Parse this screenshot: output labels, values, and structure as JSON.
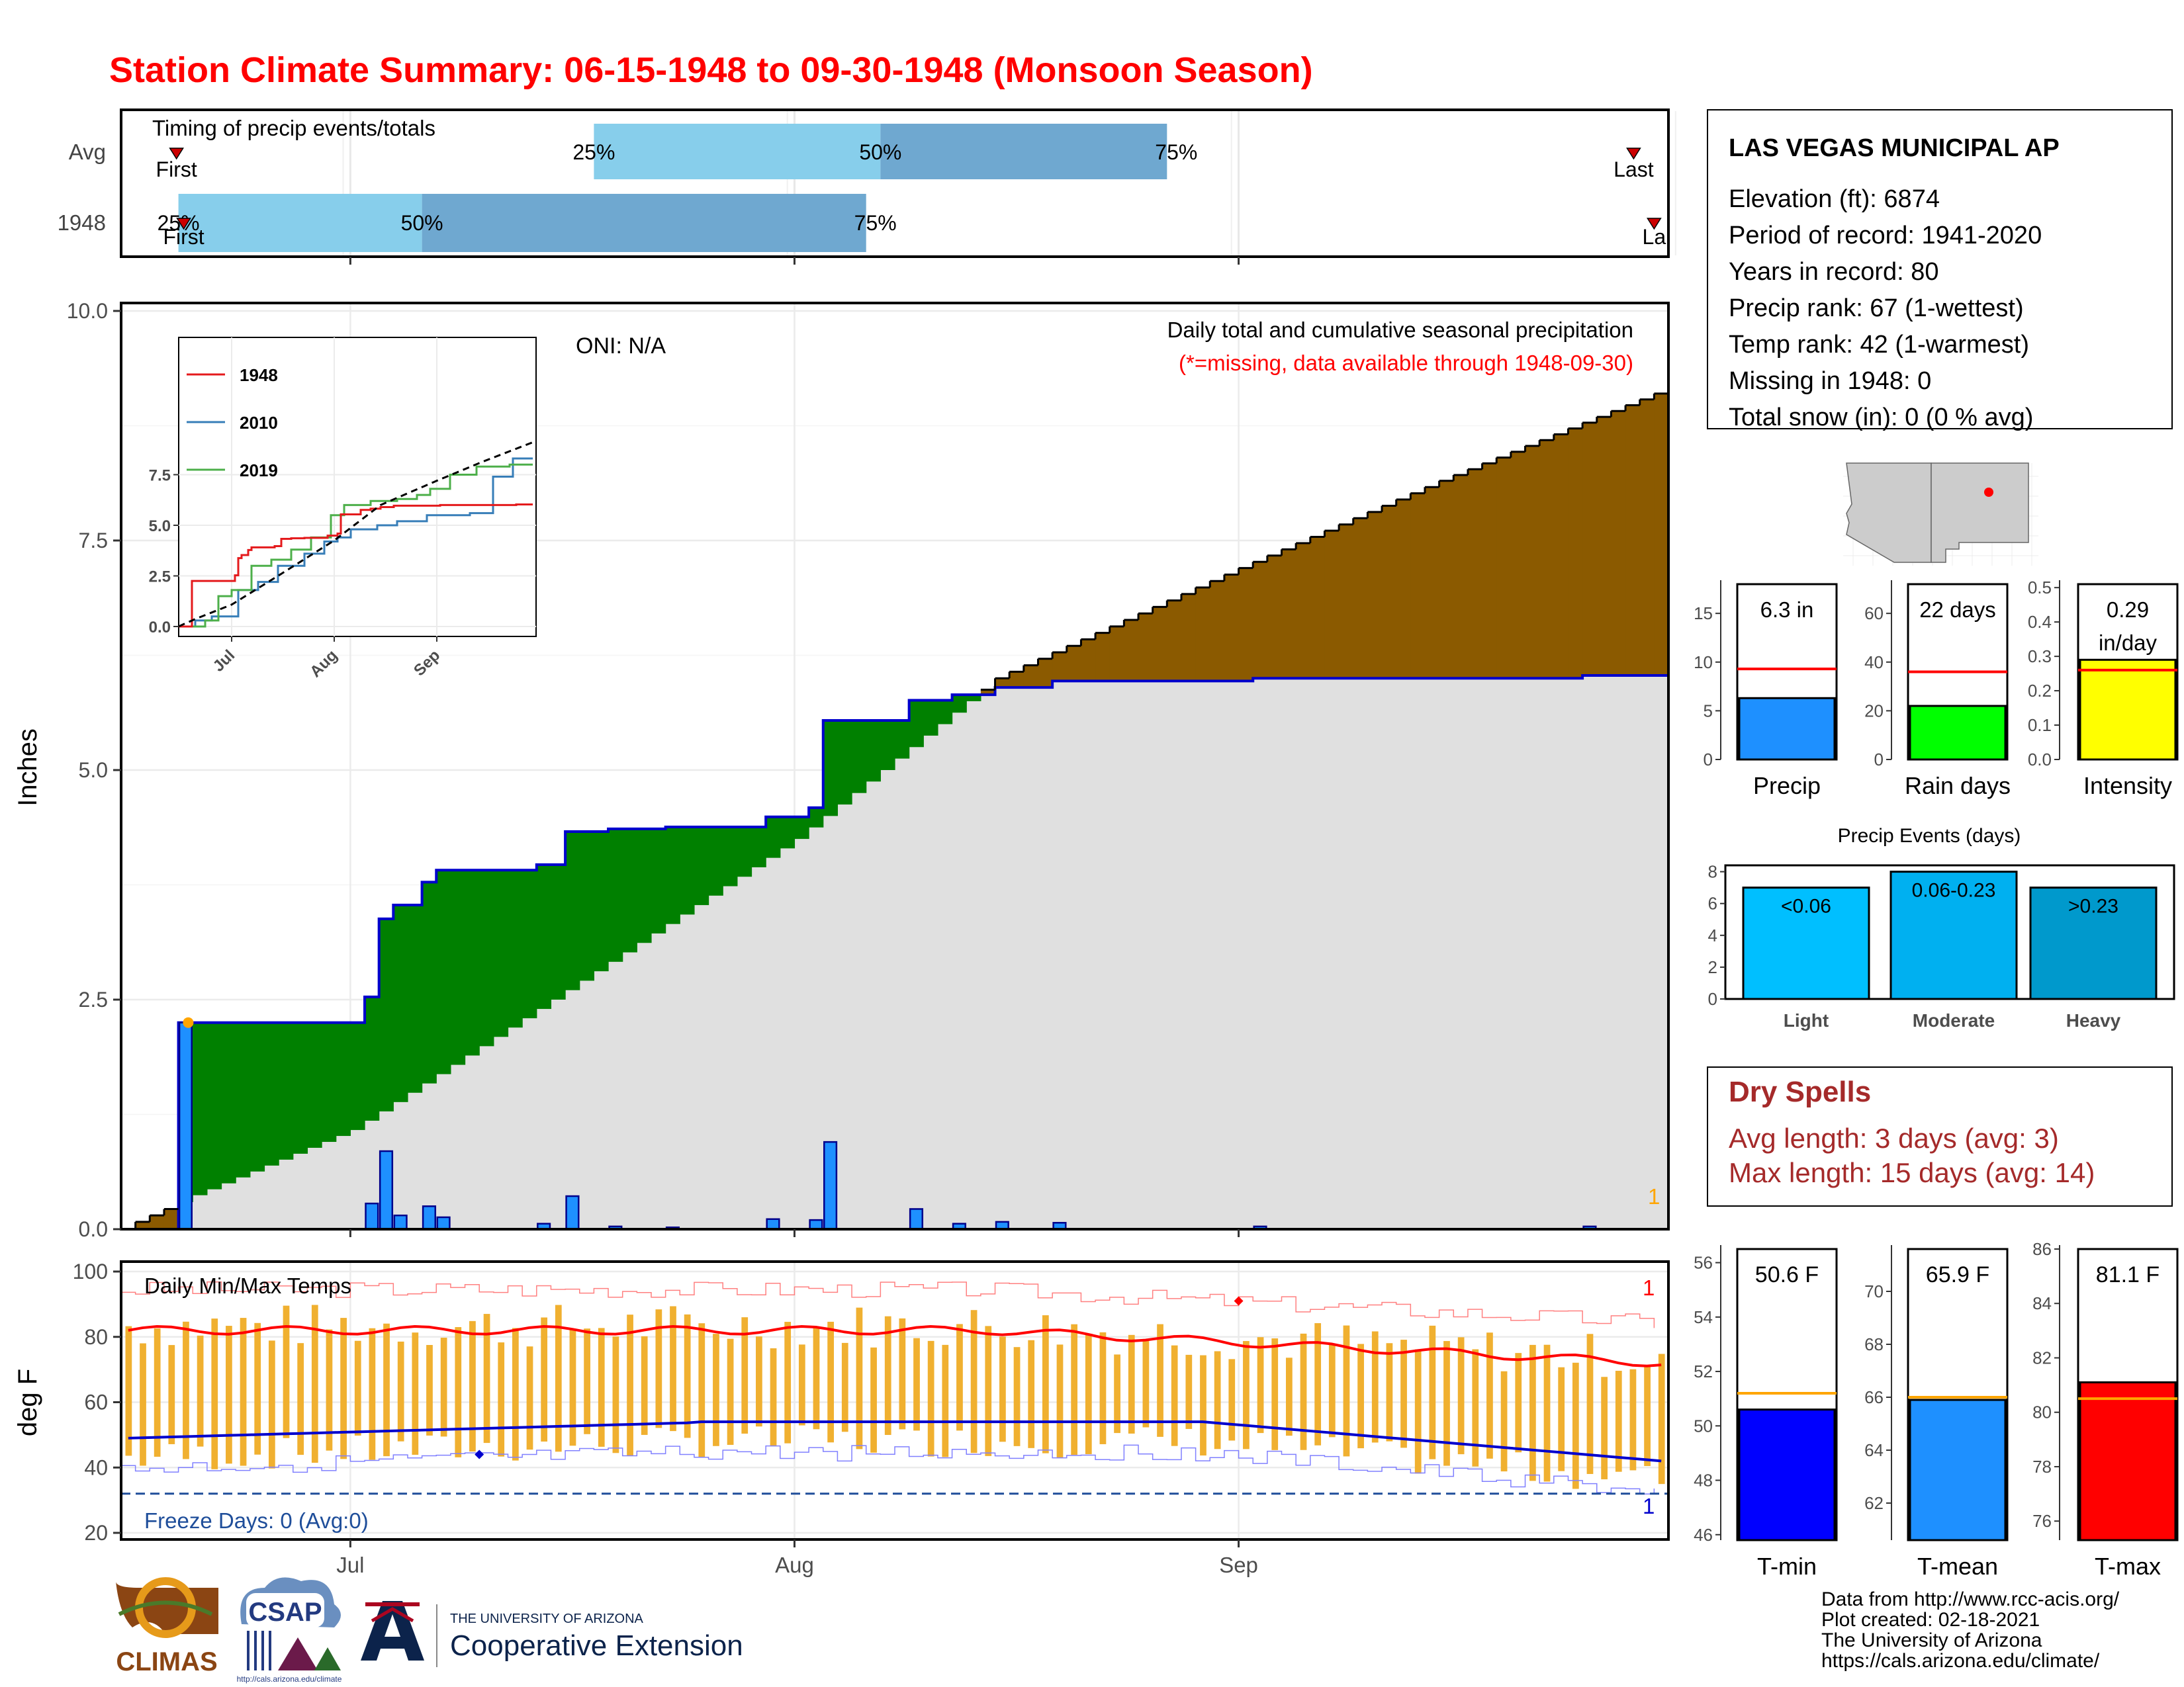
{
  "title": "Station Climate Summary: 06-15-1948 to 09-30-1948 (Monsoon Season)",
  "colors": {
    "title": "#ff0000",
    "precip_bar": "#1e90ff",
    "cum_avg_area": "#e0e0e0",
    "above_avg": "#008000",
    "below_avg": "#8b5a00",
    "avg_line": "#0000cd",
    "timing_light": "#87ceeb",
    "timing_dark": "#6fa8d0",
    "temp_bar": "#f0b030",
    "tmax_line": "#ff0000",
    "tmin_line": "#0000cd",
    "dry_spells": "#a52a2a",
    "light_bar": "#00bfff",
    "moderate_bar": "#00b0f0",
    "heavy_bar": "#0099cc",
    "rain_days_bar": "#00ff00",
    "intensity_bar": "#ffff00"
  },
  "timing": {
    "label": "Timing of precip events/totals",
    "rows": [
      {
        "name": "Avg",
        "first_label": "First",
        "last_label": "Last",
        "first_date": "1948-06-16",
        "last_date": "1948-09-27",
        "p25": "1948-07-18",
        "p50": "1948-08-07",
        "p75": "1948-08-27",
        "p25_label": "25%",
        "p50_label": "50%",
        "p75_label": "75%"
      },
      {
        "name": "1948",
        "first_label": "First",
        "last_label": "La",
        "first_date": "1948-06-19",
        "last_date": "1948-09-30",
        "p25": "1948-06-19",
        "p50": "1948-07-06",
        "p75": "1948-08-06",
        "p25_label": "25%",
        "p50_label": "50%",
        "p75_label": "75%"
      }
    ]
  },
  "precip_panel": {
    "ylabel": "Inches",
    "y_ticks": [
      "0.0",
      "2.5",
      "5.0",
      "7.5",
      "10.0"
    ],
    "ylim": [
      0,
      10
    ],
    "x_ticks": [
      "Jul",
      "Aug",
      "Sep"
    ],
    "oni": "ONI: N/A",
    "annotation1": "Daily total and cumulative seasonal precipitation",
    "annotation2": "(*=missing, data available through 1948-09-30)",
    "corner_mark": "1"
  },
  "inset": {
    "legend": [
      "1948",
      "2010",
      "2019"
    ],
    "legend_colors": [
      "#e41a1c",
      "#377eb8",
      "#4daf4a"
    ],
    "y_ticks": [
      "0.0",
      "2.5",
      "5.0",
      "7.5"
    ],
    "x_ticks": [
      "Jul",
      "Aug",
      "Sep"
    ]
  },
  "temp_panel": {
    "ylabel": "deg F",
    "label": "Daily Min/Max Temps",
    "freeze_label": "Freeze Days: 0 (Avg:0)",
    "y_ticks": [
      "20",
      "40",
      "60",
      "80",
      "100"
    ],
    "x_ticks": [
      "Jul",
      "Aug",
      "Sep"
    ],
    "corner_top": "1",
    "corner_bottom": "1"
  },
  "station": {
    "name": "LAS VEGAS MUNICIPAL AP",
    "lines": [
      "Elevation (ft): 6874",
      "Period of record: 1941-2020",
      "Years in record: 80",
      "Precip rank: 67 (1-wettest)",
      "Temp rank: 42 (1-warmest)",
      "Missing in 1948: 0",
      "Total snow (in): 0 (0 % avg)"
    ]
  },
  "summary_bars": [
    {
      "name": "Precip",
      "value_label": "6.3 in",
      "value": 6.3,
      "avg": 9.3,
      "ylim": [
        0,
        18
      ],
      "ticks": [
        "0",
        "5",
        "10",
        "15"
      ],
      "tick_vals": [
        0,
        5,
        10,
        15
      ]
    },
    {
      "name": "Rain days",
      "value_label": "22 days",
      "value": 22,
      "avg": 36,
      "ylim": [
        0,
        72
      ],
      "ticks": [
        "0",
        "20",
        "40",
        "60"
      ],
      "tick_vals": [
        0,
        20,
        40,
        60
      ]
    },
    {
      "name": "Intensity",
      "value_label": "0.29\nin/day",
      "value_lines": [
        "0.29",
        "in/day"
      ],
      "value": 0.29,
      "avg": 0.26,
      "ylim": [
        0,
        0.51
      ],
      "ticks": [
        "0.0",
        "0.1",
        "0.2",
        "0.3",
        "0.4",
        "0.5"
      ],
      "tick_vals": [
        0,
        0.1,
        0.2,
        0.3,
        0.4,
        0.5
      ]
    }
  ],
  "precip_events": {
    "title": "Precip Events (days)",
    "ticks": [
      "0",
      "2",
      "4",
      "6",
      "8"
    ],
    "categories": [
      "Light",
      "Moderate",
      "Heavy"
    ],
    "labels": [
      "<0.06",
      "0.06-0.23",
      ">0.23"
    ],
    "values": [
      7,
      8,
      7
    ]
  },
  "dry_spells": {
    "title": "Dry Spells",
    "avg_line": "Avg length: 3 days (avg: 3)",
    "max_line": "Max length: 15 days (avg: 14)"
  },
  "temp_summary": [
    {
      "name": "T-min",
      "value_label": "50.6 F",
      "value": 50.6,
      "avg": 51.2,
      "ylim": [
        45.8,
        56.5
      ],
      "ticks": [
        "46",
        "48",
        "50",
        "52",
        "54",
        "56"
      ],
      "tick_vals": [
        46,
        48,
        50,
        52,
        54,
        56
      ]
    },
    {
      "name": "T-mean",
      "value_label": "65.9 F",
      "value": 65.9,
      "avg": 66.0,
      "ylim": [
        60.6,
        71.6
      ],
      "ticks": [
        "62",
        "64",
        "66",
        "68",
        "70"
      ],
      "tick_vals": [
        62,
        64,
        66,
        68,
        70
      ]
    },
    {
      "name": "T-max",
      "value_label": "81.1 F",
      "value": 81.1,
      "avg": 80.5,
      "ylim": [
        75.3,
        86.0
      ],
      "ticks": [
        "76",
        "78",
        "80",
        "82",
        "84",
        "86"
      ],
      "tick_vals": [
        76,
        78,
        80,
        82,
        84,
        86
      ]
    }
  ],
  "footer": {
    "credits": [
      "Data from http://www.rcc-acis.org/",
      "Plot created: 02-18-2021",
      "The University of Arizona",
      "https://cals.arizona.edu/climate/"
    ],
    "climas": "CLIMAS",
    "csap": "CSAP",
    "csap_url": "http://cals.arizona.edu/climate",
    "ua_small": "THE UNIVERSITY OF ARIZONA",
    "ua_big": "Cooperative Extension"
  },
  "chart_data": {
    "type": "area",
    "title": "Station Climate Summary: 06-15-1948 to 09-30-1948 (Monsoon Season)",
    "ylabel": "Inches",
    "ylim": [
      0,
      10
    ],
    "start_date": "1948-06-15",
    "end_date": "1948-09-30",
    "daily_precip_1948": [
      {
        "date": "1948-06-19",
        "value": 2.25
      },
      {
        "date": "1948-07-02",
        "value": 0.28
      },
      {
        "date": "1948-07-03",
        "value": 0.85
      },
      {
        "date": "1948-07-04",
        "value": 0.15
      },
      {
        "date": "1948-07-06",
        "value": 0.25
      },
      {
        "date": "1948-07-07",
        "value": 0.13
      },
      {
        "date": "1948-07-14",
        "value": 0.06
      },
      {
        "date": "1948-07-16",
        "value": 0.36
      },
      {
        "date": "1948-07-19",
        "value": 0.03
      },
      {
        "date": "1948-07-23",
        "value": 0.02
      },
      {
        "date": "1948-07-30",
        "value": 0.11
      },
      {
        "date": "1948-08-02",
        "value": 0.1
      },
      {
        "date": "1948-08-03",
        "value": 0.95
      },
      {
        "date": "1948-08-09",
        "value": 0.22
      },
      {
        "date": "1948-08-12",
        "value": 0.06
      },
      {
        "date": "1948-08-15",
        "value": 0.08
      },
      {
        "date": "1948-08-19",
        "value": 0.07
      },
      {
        "date": "1948-09-02",
        "value": 0.03
      },
      {
        "date": "1948-09-25",
        "value": 0.03
      }
    ],
    "avg_cumulative": [
      {
        "date": "1948-06-15",
        "value": 0.0
      },
      {
        "date": "1948-06-16",
        "value": 0.08
      },
      {
        "date": "1948-06-18",
        "value": 0.22
      },
      {
        "date": "1948-06-20",
        "value": 0.37
      },
      {
        "date": "1948-07-01",
        "value": 1.08
      },
      {
        "date": "1948-07-15",
        "value": 2.5
      },
      {
        "date": "1948-08-01",
        "value": 4.25
      },
      {
        "date": "1948-08-15",
        "value": 6.0
      },
      {
        "date": "1948-09-01",
        "value": 7.2
      },
      {
        "date": "1948-09-15",
        "value": 8.15
      },
      {
        "date": "1948-09-30",
        "value": 9.1
      }
    ],
    "temperatures": {
      "avg_tmax_start": 82,
      "avg_tmax_end": 72,
      "avg_tmin_start": 49,
      "avg_tmin_end": 42,
      "freeze_threshold": 32
    }
  }
}
